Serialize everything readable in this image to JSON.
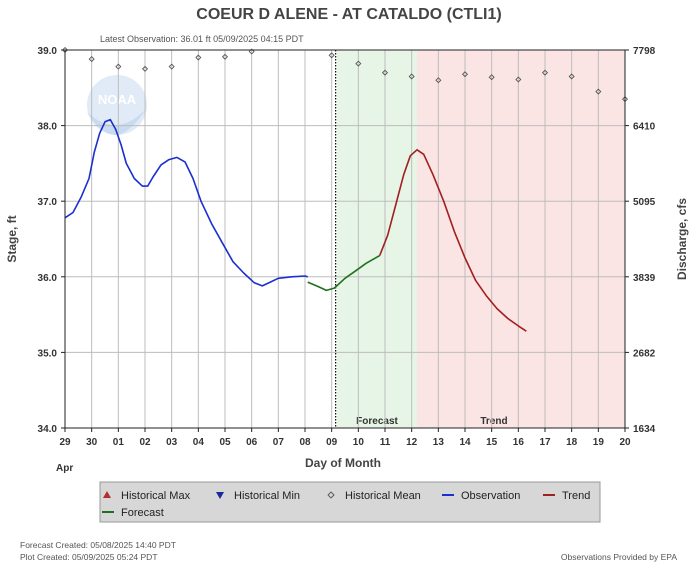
{
  "header": {
    "title": "COEUR D ALENE - AT CATALDO  (CTLI1)",
    "latest_observation": "Latest Observation: 36.01 ft 05/09/2025 04:15 PDT"
  },
  "watermark": {
    "text": "NOAA"
  },
  "regions": {
    "forecast_label": "Forecast",
    "trend_label": "Trend"
  },
  "legend": {
    "items": [
      {
        "label": "Historical Max",
        "color": "#b03030",
        "symbol": "triangle-up"
      },
      {
        "label": "Historical Min",
        "color": "#1a2a9a",
        "symbol": "triangle-down"
      },
      {
        "label": "Historical Mean",
        "color": "#555555",
        "symbol": "diamond"
      },
      {
        "label": "Observation",
        "color": "#1a2fd0",
        "symbol": "line"
      },
      {
        "label": "Trend",
        "color": "#a02020",
        "symbol": "line"
      },
      {
        "label": "Forecast",
        "color": "#207020",
        "symbol": "line"
      }
    ]
  },
  "footer": {
    "forecast_created": "Forecast Created: 05/08/2025 14:40 PDT",
    "plot_created": "Plot Created: 05/09/2025 05:24 PDT",
    "provider": "Observations Provided by EPA"
  },
  "chart_data": {
    "type": "line",
    "title": "COEUR D ALENE - AT CATALDO  (CTLI1)",
    "xlabel": "Day of Month",
    "ylabel": "Stage, ft",
    "y2label": "Discharge, cfs",
    "month_label": "Apr",
    "x_ticks": [
      "29",
      "30",
      "01",
      "02",
      "03",
      "04",
      "05",
      "06",
      "07",
      "08",
      "09",
      "10",
      "11",
      "12",
      "13",
      "14",
      "15",
      "16",
      "17",
      "18",
      "19",
      "20"
    ],
    "x_range_days": [
      0,
      21
    ],
    "ylim": [
      34.0,
      39.0
    ],
    "y_ticks": [
      "34.0",
      "35.0",
      "36.0",
      "37.0",
      "38.0",
      "39.0"
    ],
    "y2_ticks": [
      "1634",
      "2682",
      "3839",
      "5095",
      "6410",
      "7798"
    ],
    "grid": true,
    "forecast_region_days": [
      10.2,
      13.2
    ],
    "trend_region_days": [
      13.2,
      21
    ],
    "current_time_day": 10.15,
    "series": [
      {
        "name": "Observation",
        "color": "#1a2fd0",
        "points": [
          [
            0.0,
            36.78
          ],
          [
            0.3,
            36.85
          ],
          [
            0.6,
            37.05
          ],
          [
            0.9,
            37.3
          ],
          [
            1.1,
            37.65
          ],
          [
            1.3,
            37.9
          ],
          [
            1.5,
            38.05
          ],
          [
            1.7,
            38.08
          ],
          [
            1.9,
            37.95
          ],
          [
            2.1,
            37.75
          ],
          [
            2.3,
            37.5
          ],
          [
            2.6,
            37.3
          ],
          [
            2.9,
            37.2
          ],
          [
            3.1,
            37.2
          ],
          [
            3.3,
            37.32
          ],
          [
            3.6,
            37.48
          ],
          [
            3.9,
            37.55
          ],
          [
            4.2,
            37.58
          ],
          [
            4.5,
            37.52
          ],
          [
            4.8,
            37.3
          ],
          [
            5.1,
            37.0
          ],
          [
            5.5,
            36.7
          ],
          [
            5.9,
            36.45
          ],
          [
            6.3,
            36.2
          ],
          [
            6.7,
            36.05
          ],
          [
            7.1,
            35.92
          ],
          [
            7.4,
            35.88
          ],
          [
            7.7,
            35.93
          ],
          [
            8.0,
            35.98
          ],
          [
            8.5,
            36.0
          ],
          [
            9.0,
            36.01
          ],
          [
            9.1,
            36.0
          ]
        ]
      },
      {
        "name": "Forecast",
        "color": "#207020",
        "points": [
          [
            9.1,
            35.93
          ],
          [
            9.5,
            35.87
          ],
          [
            9.8,
            35.82
          ],
          [
            10.1,
            35.85
          ],
          [
            10.5,
            35.98
          ],
          [
            10.9,
            36.08
          ],
          [
            11.3,
            36.18
          ],
          [
            11.8,
            36.28
          ]
        ]
      },
      {
        "name": "Trend",
        "color": "#a02020",
        "points": [
          [
            11.8,
            36.28
          ],
          [
            12.1,
            36.55
          ],
          [
            12.4,
            36.95
          ],
          [
            12.7,
            37.35
          ],
          [
            12.95,
            37.6
          ],
          [
            13.2,
            37.68
          ],
          [
            13.45,
            37.62
          ],
          [
            13.8,
            37.35
          ],
          [
            14.2,
            37.0
          ],
          [
            14.6,
            36.6
          ],
          [
            15.0,
            36.25
          ],
          [
            15.4,
            35.95
          ],
          [
            15.8,
            35.75
          ],
          [
            16.2,
            35.58
          ],
          [
            16.6,
            35.45
          ],
          [
            17.0,
            35.35
          ],
          [
            17.3,
            35.28
          ]
        ]
      },
      {
        "name": "Historical Mean",
        "color": "#555555",
        "points": [
          [
            0.0,
            39.0
          ],
          [
            1.0,
            38.88
          ],
          [
            2.0,
            38.78
          ],
          [
            3.0,
            38.75
          ],
          [
            4.0,
            38.78
          ],
          [
            5.0,
            38.9
          ],
          [
            6.0,
            38.91
          ],
          [
            7.0,
            38.98
          ],
          [
            10.0,
            38.93
          ],
          [
            11.0,
            38.82
          ],
          [
            12.0,
            38.7
          ],
          [
            13.0,
            38.65
          ],
          [
            14.0,
            38.6
          ],
          [
            15.0,
            38.68
          ],
          [
            16.0,
            38.64
          ],
          [
            17.0,
            38.61
          ],
          [
            18.0,
            38.7
          ],
          [
            19.0,
            38.65
          ],
          [
            20.0,
            38.45
          ],
          [
            21.0,
            38.35
          ]
        ]
      }
    ]
  }
}
